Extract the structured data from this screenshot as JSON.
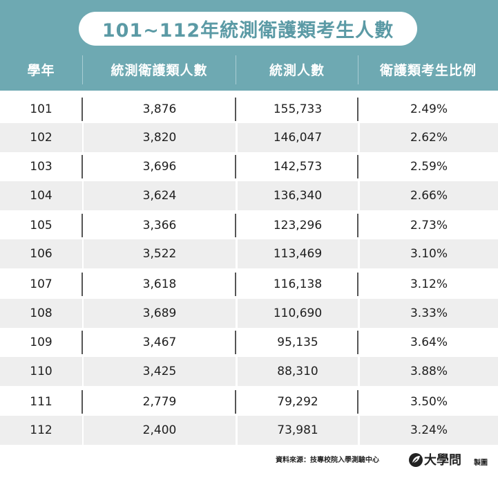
{
  "chart_data": {
    "type": "table",
    "title": "101~112年統測衛護類考生人數",
    "columns": [
      "學年",
      "統測衛護類人數",
      "統測人數",
      "衛護類考生比例"
    ],
    "rows": [
      [
        "101",
        "3,876",
        "155,733",
        "2.49%"
      ],
      [
        "102",
        "3,820",
        "146,047",
        "2.62%"
      ],
      [
        "103",
        "3,696",
        "142,573",
        "2.59%"
      ],
      [
        "104",
        "3,624",
        "136,340",
        "2.66%"
      ],
      [
        "105",
        "3,366",
        "123,296",
        "2.73%"
      ],
      [
        "106",
        "3,522",
        "113,469",
        "3.10%"
      ],
      [
        "107",
        "3,618",
        "116,138",
        "3.12%"
      ],
      [
        "108",
        "3,689",
        "110,690",
        "3.33%"
      ],
      [
        "109",
        "3,467",
        "95,135",
        "3.64%"
      ],
      [
        "110",
        "3,425",
        "88,310",
        "3.88%"
      ],
      [
        "111",
        "2,779",
        "79,292",
        "3.50%"
      ],
      [
        "112",
        "2,400",
        "73,981",
        "3.24%"
      ]
    ]
  },
  "footer": {
    "source": "資料來源：技專校院入學測驗中心",
    "brand": "大學問",
    "brand_suffix": "製圖",
    "brand_icon": "leaf-logo-icon"
  },
  "colors": {
    "header_bg": "#6ea9b2",
    "title_text": "#5b9aa5",
    "row_shade": "#eeeeee"
  }
}
